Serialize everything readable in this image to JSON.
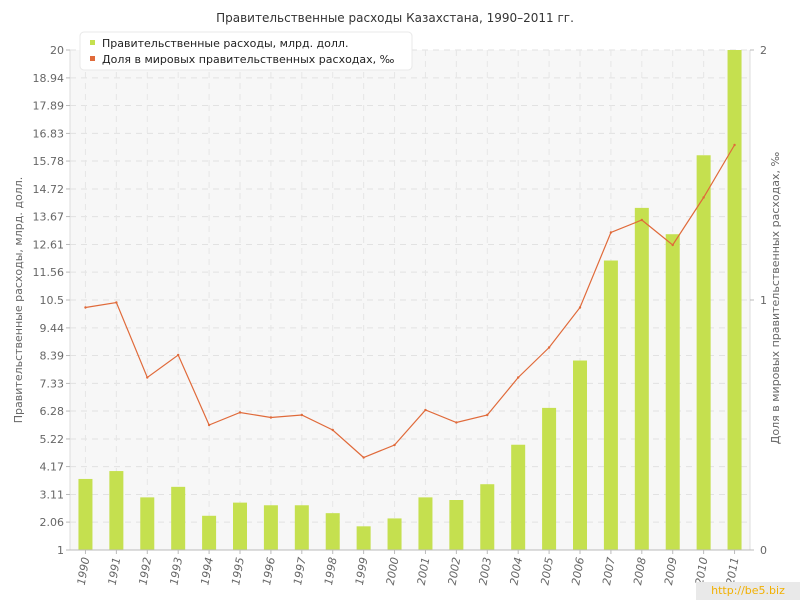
{
  "watermark": "http://be5.biz",
  "chart_data": {
    "type": "bar+line",
    "title": "Правительственные расходы Казахстана, 1990–2011 гг.",
    "ylabel_left": "Правительственные расходы, млрд. долл.",
    "ylabel_right": "Доля в мировых правительственных расходах, ‰",
    "categories": [
      "1990",
      "1991",
      "1992",
      "1993",
      "1994",
      "1995",
      "1996",
      "1997",
      "1998",
      "1999",
      "2000",
      "2001",
      "2002",
      "2003",
      "2004",
      "2005",
      "2006",
      "2007",
      "2008",
      "2009",
      "2010",
      "2011"
    ],
    "left_axis": {
      "ylim": [
        1,
        20
      ],
      "ticks": [
        "1",
        "2.06",
        "3.11",
        "4.17",
        "5.22",
        "6.28",
        "7.33",
        "8.39",
        "9.44",
        "10.5",
        "11.56",
        "12.61",
        "13.67",
        "14.72",
        "15.78",
        "16.83",
        "17.89",
        "18.94",
        "20"
      ]
    },
    "right_axis": {
      "ylim": [
        0,
        2
      ],
      "ticks": [
        "0",
        "1",
        "2"
      ]
    },
    "series": [
      {
        "name": "Правительственные расходы, млрд. долл.",
        "type": "bar",
        "axis": "left",
        "color": "#c5e04f",
        "values": [
          3.7,
          4.0,
          3.0,
          3.4,
          2.3,
          2.8,
          2.7,
          2.7,
          2.4,
          1.9,
          2.2,
          3.0,
          2.9,
          3.5,
          5.0,
          6.4,
          8.2,
          12.0,
          14.0,
          13.0,
          16.0,
          20.0
        ]
      },
      {
        "name": "Доля в мировых правительственных расходах, ‰",
        "type": "line",
        "axis": "right",
        "color": "#e06a3a",
        "values": [
          0.97,
          0.99,
          0.69,
          0.78,
          0.5,
          0.55,
          0.53,
          0.54,
          0.48,
          0.37,
          0.42,
          0.56,
          0.51,
          0.54,
          0.69,
          0.81,
          0.97,
          1.27,
          1.32,
          1.22,
          1.41,
          1.62
        ]
      }
    ],
    "grid": true,
    "legend": "top-left"
  }
}
